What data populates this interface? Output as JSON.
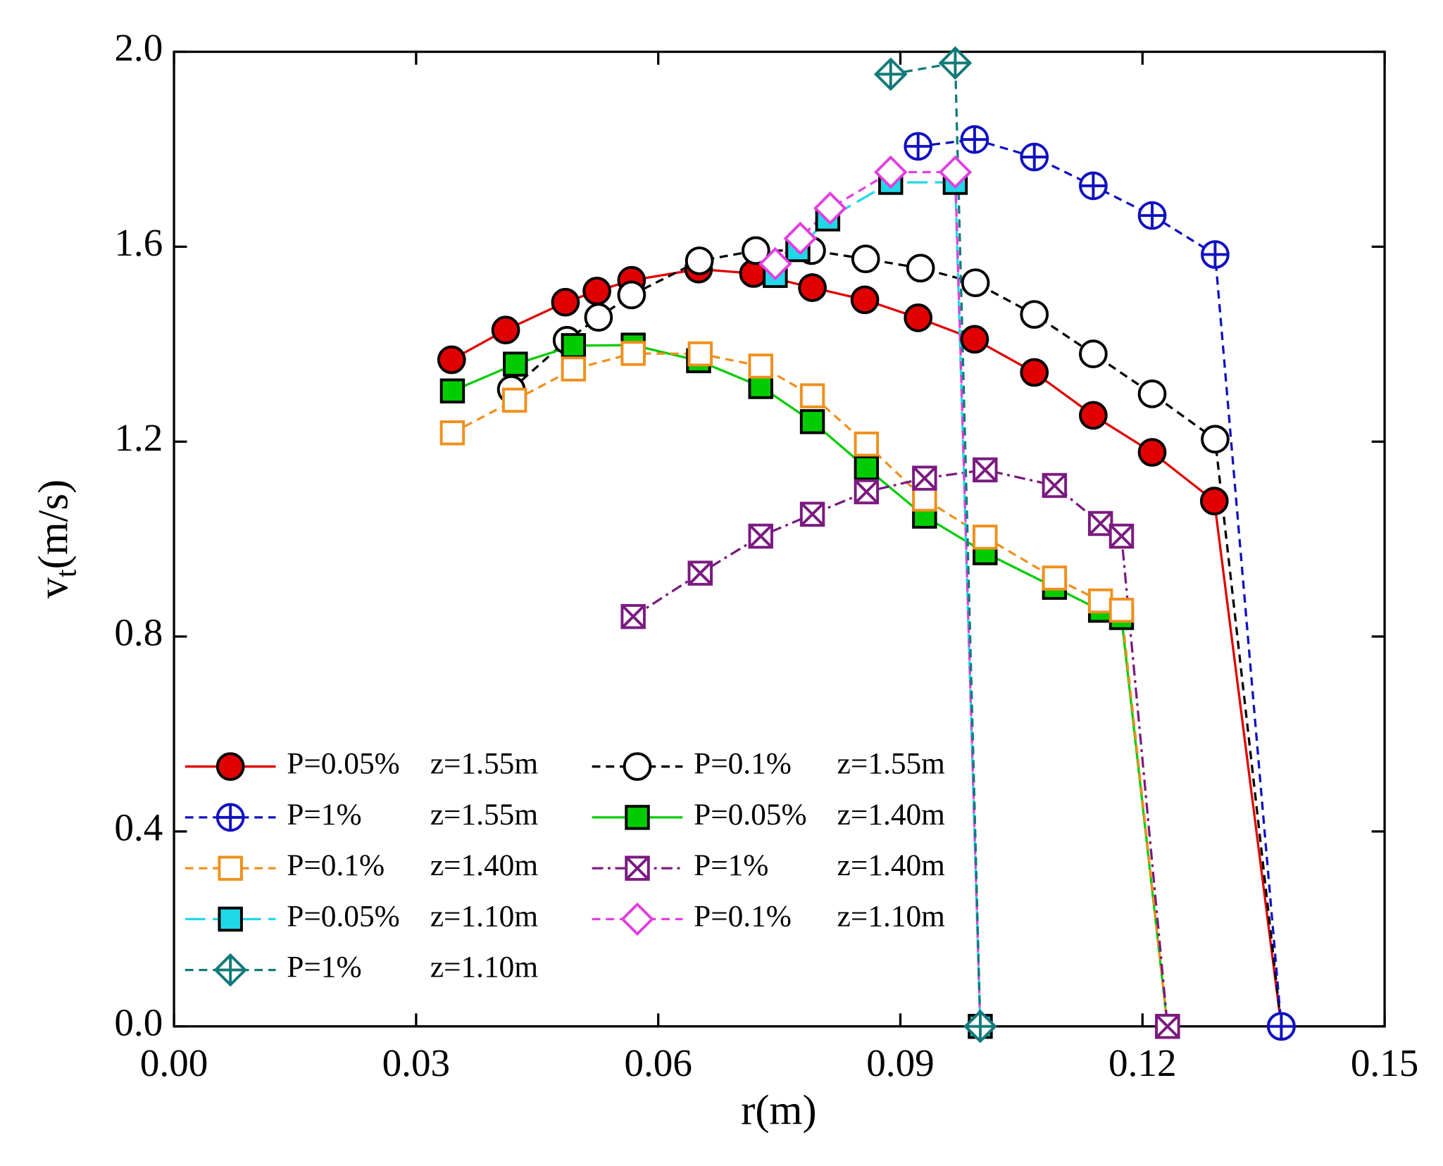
{
  "chart_data": {
    "type": "line",
    "x_label": "r(m)",
    "y_label_parts": [
      "v",
      "t",
      "(m/s)"
    ],
    "xlim": [
      0,
      0.15
    ],
    "ylim": [
      0,
      2.0
    ],
    "xticks": [
      {
        "value": 0,
        "label": "0.00"
      },
      0.03,
      0.06,
      0.09,
      0.12,
      0.15
    ],
    "yticks": [
      {
        "value": 0,
        "label": "0.0"
      },
      0.4,
      0.8,
      1.2,
      1.6,
      {
        "value": 2,
        "label": "2.0"
      }
    ],
    "series": [
      {
        "name": "P=0.05%",
        "location": "z=1.55m",
        "color": "#e00000",
        "marker": "circle",
        "linestyle": "solid",
        "x": [
          0.0344,
          0.0411,
          0.0485,
          0.0524,
          0.0567,
          0.065,
          0.0718,
          0.0791,
          0.0856,
          0.0922,
          0.0992,
          0.1066,
          0.1139,
          0.1212,
          0.1289,
          0.1372
        ],
        "values": [
          1.368,
          1.429,
          1.486,
          1.509,
          1.531,
          1.554,
          1.545,
          1.516,
          1.491,
          1.454,
          1.41,
          1.342,
          1.254,
          1.178,
          1.078,
          0
        ]
      },
      {
        "name": "P=0.1%",
        "location": "z=1.55m",
        "color": "#000000",
        "marker": "circle-open",
        "linestyle": "dashed",
        "x": [
          0.0418,
          0.0487,
          0.0526,
          0.0567,
          0.0651,
          0.0721,
          0.079,
          0.0857,
          0.0925,
          0.0993,
          0.1066,
          0.1139,
          0.1212,
          0.129,
          0.1372
        ],
        "values": [
          1.307,
          1.408,
          1.455,
          1.501,
          1.571,
          1.592,
          1.592,
          1.575,
          1.556,
          1.526,
          1.461,
          1.38,
          1.298,
          1.205,
          0
        ]
      },
      {
        "name": "P=1%",
        "location": "z=1.55m",
        "color": "#1010c0",
        "marker": "circle-plus",
        "linestyle": "dashed",
        "x": [
          0.0922,
          0.0992,
          0.1066,
          0.1139,
          0.1212,
          0.129,
          0.1372
        ],
        "values": [
          1.806,
          1.82,
          1.784,
          1.725,
          1.664,
          1.584,
          0
        ]
      },
      {
        "name": "P=0.05%",
        "location": "z=1.40m",
        "color": "#00cc00",
        "marker": "square",
        "linestyle": "solid",
        "x": [
          0.0345,
          0.0423,
          0.0495,
          0.0569,
          0.065,
          0.0727,
          0.0791,
          0.0858,
          0.093,
          0.1005,
          0.1091,
          0.1148,
          0.1174,
          0.1231
        ],
        "values": [
          1.304,
          1.359,
          1.397,
          1.398,
          1.366,
          1.313,
          1.241,
          1.146,
          1.047,
          0.972,
          0.901,
          0.854,
          0.839,
          0
        ]
      },
      {
        "name": "P=0.1%",
        "location": "z=1.40m",
        "color": "#f0901c",
        "marker": "square-open",
        "linestyle": "dashed",
        "x": [
          0.0345,
          0.0422,
          0.0495,
          0.0569,
          0.0652,
          0.0727,
          0.0791,
          0.0858,
          0.093,
          0.1005,
          0.1091,
          0.1148,
          0.1174,
          0.1231
        ],
        "values": [
          1.218,
          1.285,
          1.349,
          1.381,
          1.38,
          1.355,
          1.294,
          1.195,
          1.082,
          1.004,
          0.92,
          0.873,
          0.854,
          0
        ]
      },
      {
        "name": "P=1%",
        "location": "z=1.40m",
        "color": "#7a1a80",
        "marker": "square-x",
        "linestyle": "dashdot",
        "x": [
          0.0569,
          0.0652,
          0.0727,
          0.0791,
          0.0858,
          0.093,
          0.1005,
          0.1091,
          0.1148,
          0.1174,
          0.1231
        ],
        "values": [
          0.841,
          0.93,
          1.006,
          1.051,
          1.097,
          1.125,
          1.142,
          1.11,
          1.032,
          1.006,
          0
        ]
      },
      {
        "name": "P=0.05%",
        "location": "z=1.10m",
        "color": "#20d8e8",
        "marker": "square",
        "linestyle": "longdash",
        "x": [
          0.0745,
          0.0773,
          0.081,
          0.0888,
          0.0968,
          0.0999
        ],
        "values": [
          1.541,
          1.594,
          1.657,
          1.732,
          1.732,
          0
        ]
      },
      {
        "name": "P=0.1%",
        "location": "z=1.10m",
        "color": "#e040e0",
        "marker": "diamond",
        "linestyle": "dashed",
        "x": [
          0.0745,
          0.0776,
          0.0813,
          0.0888,
          0.0968,
          0.0999
        ],
        "values": [
          1.565,
          1.617,
          1.679,
          1.753,
          1.753,
          0
        ]
      },
      {
        "name": "P=1%",
        "location": "z=1.10m",
        "color": "#127a78",
        "marker": "diamond-plus",
        "linestyle": "dashed",
        "x": [
          0.0888,
          0.0968,
          0.0999
        ],
        "values": [
          1.954,
          1.977,
          0
        ]
      }
    ]
  }
}
